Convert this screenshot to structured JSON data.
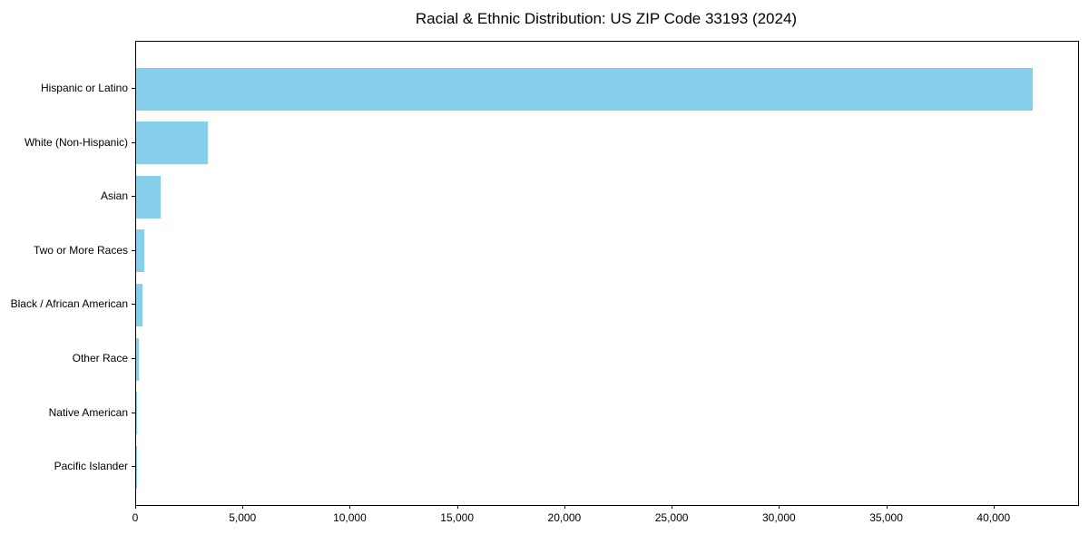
{
  "title": "Racial & Ethnic Distribution: US ZIP Code 33193 (2024)",
  "colors": {
    "bar": "#87CEEB",
    "axis": "#000000",
    "text": "#000000",
    "background": "#FFFFFF"
  },
  "chart_data": {
    "type": "bar",
    "orientation": "horizontal",
    "title": "Racial & Ethnic Distribution: US ZIP Code 33193 (2024)",
    "xlabel": "",
    "ylabel": "",
    "categories": [
      "Hispanic or Latino",
      "White (Non-Hispanic)",
      "Asian",
      "Two or More Races",
      "Black / African American",
      "Other Race",
      "Native American",
      "Pacific Islander"
    ],
    "values": [
      41800,
      3360,
      1130,
      400,
      310,
      130,
      40,
      10
    ],
    "xlim": [
      0,
      43900
    ],
    "xticks": [
      0,
      5000,
      10000,
      15000,
      20000,
      25000,
      30000,
      35000,
      40000
    ],
    "xtick_labels": [
      "0",
      "5,000",
      "10,000",
      "15,000",
      "20,000",
      "25,000",
      "30,000",
      "35,000",
      "40,000"
    ],
    "grid": false,
    "legend": "none",
    "bar_color": "#87CEEB"
  }
}
